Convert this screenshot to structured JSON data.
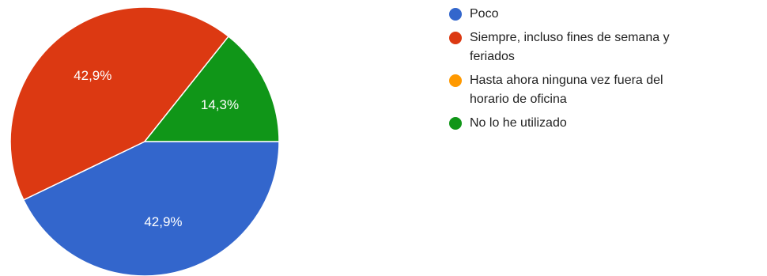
{
  "chart_data": {
    "type": "pie",
    "slices": [
      {
        "name": "Poco",
        "value": 42.9,
        "label": "42,9%",
        "color": "#3366CC"
      },
      {
        "name": "Siempre, incluso fines de semana y feriados",
        "value": 42.9,
        "label": "42,9%",
        "color": "#DC3912"
      },
      {
        "name": "Hasta ahora ninguna vez fuera del horario de oficina",
        "value": 0,
        "label": "",
        "color": "#FF9900"
      },
      {
        "name": "No lo he utilizado",
        "value": 14.3,
        "label": "14,3%",
        "color": "#109618"
      }
    ],
    "legend_position": "right"
  },
  "legend": {
    "items": [
      {
        "label_line1": "Poco",
        "label_line2": "",
        "color": "#3366CC"
      },
      {
        "label_line1": "Siempre, incluso fines de semana y",
        "label_line2": "feriados",
        "color": "#DC3912"
      },
      {
        "label_line1": "Hasta ahora ninguna vez fuera del",
        "label_line2": "horario de oficina",
        "color": "#FF9900"
      },
      {
        "label_line1": "No lo he utilizado",
        "label_line2": "",
        "color": "#109618"
      }
    ]
  }
}
